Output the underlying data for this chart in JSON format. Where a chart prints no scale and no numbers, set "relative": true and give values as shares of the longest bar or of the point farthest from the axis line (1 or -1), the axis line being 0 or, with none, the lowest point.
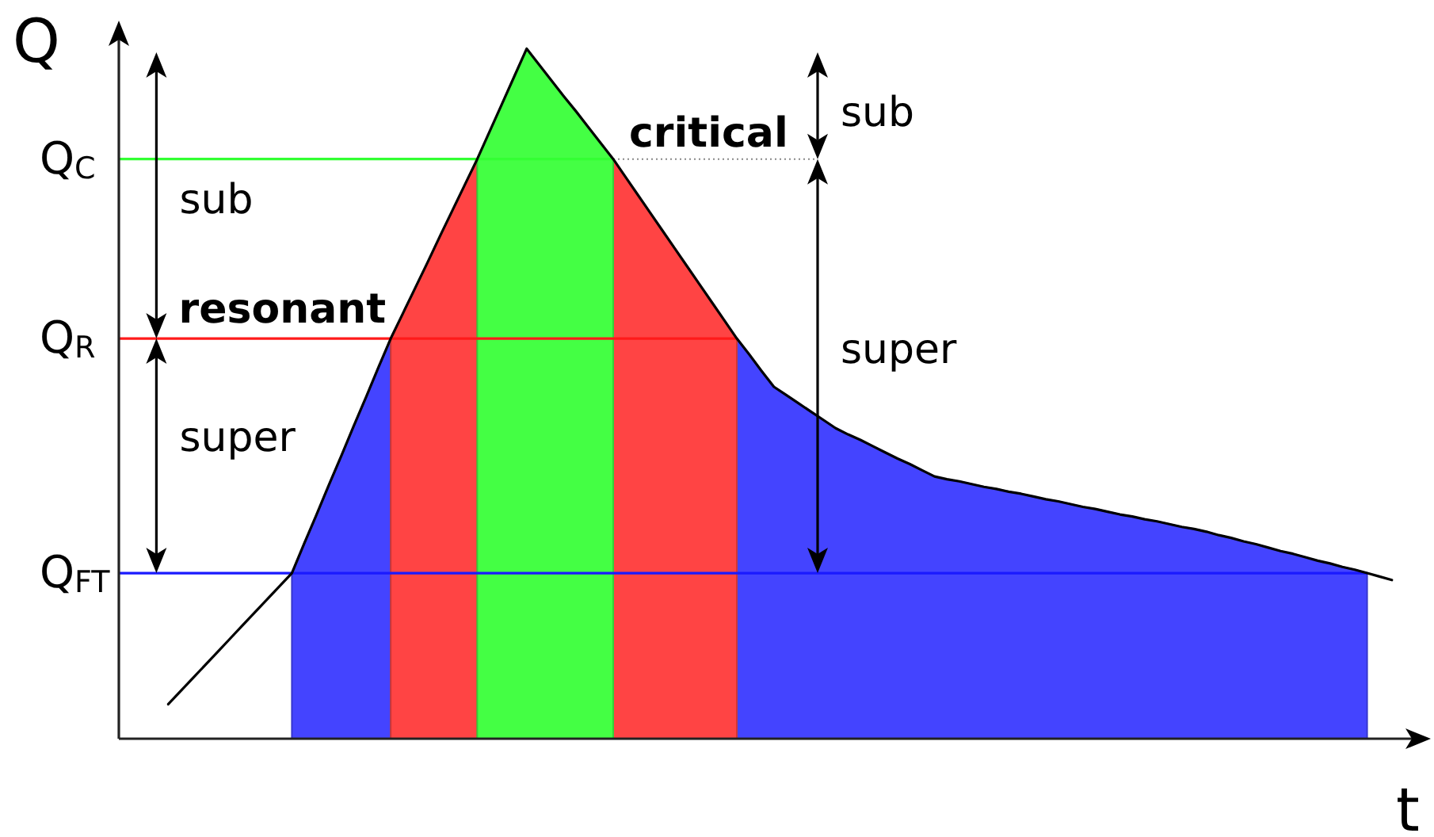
{
  "chart_data": {
    "type": "area",
    "relative": true,
    "xlabel": "t",
    "ylabel": "Q",
    "categories": [
      null,
      null,
      null,
      null,
      null,
      null,
      null,
      null,
      null,
      null,
      null,
      null,
      null,
      null,
      null,
      null,
      null,
      null,
      null,
      null,
      null,
      null,
      null,
      null,
      null,
      null,
      null,
      null,
      null,
      null,
      null,
      null,
      null,
      null,
      null,
      null,
      null,
      null,
      null,
      null,
      null,
      null,
      null,
      null,
      null,
      null,
      null,
      null,
      null,
      null,
      null,
      null,
      null,
      null,
      null,
      null,
      null,
      null,
      null,
      null,
      null,
      null,
      null,
      null,
      null,
      null,
      null,
      null,
      null,
      null,
      null,
      null,
      null,
      null,
      null,
      null,
      null,
      null,
      null,
      null,
      null,
      null,
      null,
      null,
      null,
      null,
      null,
      null,
      null,
      null,
      null,
      null,
      null,
      null,
      null,
      null,
      null,
      null,
      null,
      null,
      null,
      null,
      null,
      null
    ],
    "series": [
      {
        "color": "#4444ff",
        "values": [
          null,
          null,
          null,
          null,
          null,
          null,
          null,
          null,
          null,
          null,
          null,
          null,
          null,
          null,
          0.24,
          0.283,
          0.325,
          0.368,
          0.41,
          0.453,
          0.495,
          0.538,
          0.58,
          null,
          null,
          null,
          null,
          null,
          null,
          null,
          null,
          null,
          null,
          null,
          null,
          null,
          null,
          null,
          null,
          null,
          null,
          null,
          null,
          null,
          null,
          null,
          null,
          null,
          null,
          null,
          0.58,
          0.557,
          0.533,
          0.51,
          0.498,
          0.486,
          0.474,
          0.462,
          0.45,
          0.441,
          0.433,
          0.424,
          0.415,
          0.406,
          0.398,
          0.389,
          0.38,
          0.376,
          0.373,
          0.369,
          0.365,
          0.362,
          0.358,
          0.355,
          0.351,
          0.347,
          0.344,
          0.34,
          0.336,
          0.333,
          0.329,
          0.325,
          0.322,
          0.318,
          0.315,
          0.311,
          0.307,
          0.304,
          0.3,
          0.295,
          0.291,
          0.286,
          0.282,
          0.277,
          0.272,
          0.268,
          0.263,
          0.258,
          0.254,
          0.249,
          0.245,
          0.24,
          null,
          null
        ]
      },
      {
        "color": "#ff4444",
        "values": [
          null,
          null,
          null,
          null,
          null,
          null,
          null,
          null,
          null,
          null,
          null,
          null,
          null,
          null,
          null,
          null,
          null,
          null,
          null,
          null,
          null,
          null,
          0.58,
          0.617,
          0.654,
          0.691,
          0.729,
          0.766,
          0.803,
          0.84,
          null,
          null,
          null,
          null,
          null,
          null,
          null,
          null,
          null,
          null,
          0.84,
          0.814,
          0.788,
          0.762,
          0.736,
          0.71,
          0.684,
          0.658,
          0.632,
          0.606,
          0.58,
          null,
          null,
          null,
          null,
          null,
          null,
          null,
          null,
          null,
          null,
          null,
          null,
          null,
          null,
          null,
          null,
          null,
          null,
          null,
          null,
          null,
          null,
          null,
          null,
          null,
          null,
          null,
          null,
          null,
          null,
          null,
          null,
          null,
          null,
          null,
          null,
          null,
          null,
          null,
          null,
          null,
          null,
          null,
          null,
          null,
          null,
          null,
          null,
          null,
          null,
          null,
          null,
          null
        ]
      },
      {
        "color": "#44ff44",
        "values": [
          null,
          null,
          null,
          null,
          null,
          null,
          null,
          null,
          null,
          null,
          null,
          null,
          null,
          null,
          null,
          null,
          null,
          null,
          null,
          null,
          null,
          null,
          null,
          null,
          null,
          null,
          null,
          null,
          null,
          0.84,
          0.88,
          0.92,
          0.96,
          1,
          0.977,
          0.954,
          0.931,
          0.909,
          0.886,
          0.863,
          0.84,
          null,
          null,
          null,
          null,
          null,
          null,
          null,
          null,
          null,
          null,
          null,
          null,
          null,
          null,
          null,
          null,
          null,
          null,
          null,
          null,
          null,
          null,
          null,
          null,
          null,
          null,
          null,
          null,
          null,
          null,
          null,
          null,
          null,
          null,
          null,
          null,
          null,
          null,
          null,
          null,
          null,
          null,
          null,
          null,
          null,
          null,
          null,
          null,
          null,
          null,
          null,
          null,
          null,
          null,
          null,
          null,
          null,
          null,
          null,
          null,
          null,
          null,
          null
        ]
      },
      {
        "type": "line",
        "color": "#000000",
        "values": [
          null,
          null,
          null,
          null,
          0.05,
          0.069,
          0.088,
          0.107,
          0.126,
          0.145,
          0.164,
          0.183,
          0.202,
          0.221,
          0.24,
          0.283,
          0.325,
          0.368,
          0.41,
          0.453,
          0.495,
          0.538,
          0.58,
          0.617,
          0.654,
          0.691,
          0.729,
          0.766,
          0.803,
          0.84,
          0.88,
          0.92,
          0.96,
          1,
          0.977,
          0.954,
          0.931,
          0.909,
          0.886,
          0.863,
          0.84,
          0.814,
          0.788,
          0.762,
          0.736,
          0.71,
          0.684,
          0.658,
          0.632,
          0.606,
          0.58,
          0.557,
          0.533,
          0.51,
          0.498,
          0.486,
          0.474,
          0.462,
          0.45,
          0.441,
          0.433,
          0.424,
          0.415,
          0.406,
          0.398,
          0.389,
          0.38,
          0.376,
          0.373,
          0.369,
          0.365,
          0.362,
          0.358,
          0.355,
          0.351,
          0.347,
          0.344,
          0.34,
          0.336,
          0.333,
          0.329,
          0.325,
          0.322,
          0.318,
          0.315,
          0.311,
          0.307,
          0.304,
          0.3,
          0.295,
          0.291,
          0.286,
          0.282,
          0.277,
          0.272,
          0.268,
          0.263,
          0.258,
          0.254,
          0.249,
          0.245,
          0.24,
          0.235,
          0.23
        ]
      }
    ],
    "ref_lines": [
      {
        "axis": "y",
        "value": 0.84,
        "label": "Q$_{C}$",
        "color": "#33ff33"
      },
      {
        "axis": "y",
        "value": 0.58,
        "label": "Q$_{R}$",
        "color": "#ff1a1a"
      },
      {
        "axis": "y",
        "value": 0.24,
        "label": "Q$_{FT}$",
        "color": "#1a1aff"
      }
    ],
    "annotations": [
      "resonant",
      "critical",
      "sub",
      "super",
      "sub",
      "super"
    ]
  }
}
